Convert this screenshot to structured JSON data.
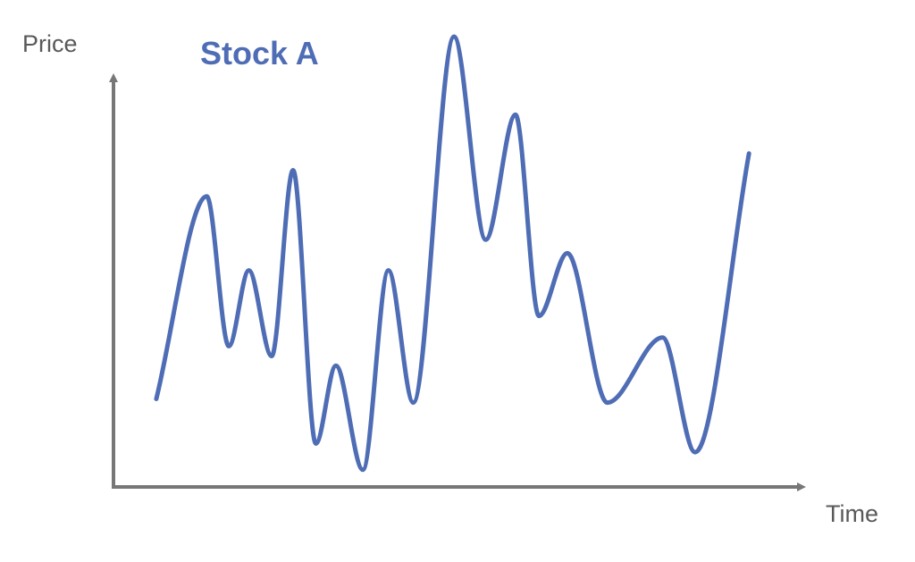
{
  "chart_data": {
    "type": "line",
    "title": "Stock A",
    "xlabel": "Time",
    "ylabel": "Price",
    "ylim": [
      0,
      100
    ],
    "xlim": [
      0,
      100
    ],
    "grid": false,
    "tick_labels": false,
    "series": [
      {
        "values": [
          {
            "x": 6.2,
            "y": 19.5
          },
          {
            "x": 13.5,
            "y": 64.4
          },
          {
            "x": 16.7,
            "y": 31.2
          },
          {
            "x": 19.6,
            "y": 48.0
          },
          {
            "x": 22.9,
            "y": 29.0
          },
          {
            "x": 26.0,
            "y": 70.2
          },
          {
            "x": 29.3,
            "y": 9.6
          },
          {
            "x": 32.2,
            "y": 26.9
          },
          {
            "x": 36.1,
            "y": 3.8
          },
          {
            "x": 39.8,
            "y": 48.0
          },
          {
            "x": 43.4,
            "y": 18.7
          },
          {
            "x": 49.3,
            "y": 99.8
          },
          {
            "x": 53.9,
            "y": 54.8
          },
          {
            "x": 58.2,
            "y": 82.5
          },
          {
            "x": 61.6,
            "y": 37.9
          },
          {
            "x": 65.7,
            "y": 51.8
          },
          {
            "x": 71.5,
            "y": 18.7
          },
          {
            "x": 79.5,
            "y": 33.1
          },
          {
            "x": 84.2,
            "y": 7.7
          },
          {
            "x": 92.0,
            "y": 73.9
          }
        ]
      }
    ]
  },
  "colors": {
    "line": "#4F6DB5",
    "axis": "#777777",
    "title": "#4F6DB5",
    "label": "#595959"
  }
}
